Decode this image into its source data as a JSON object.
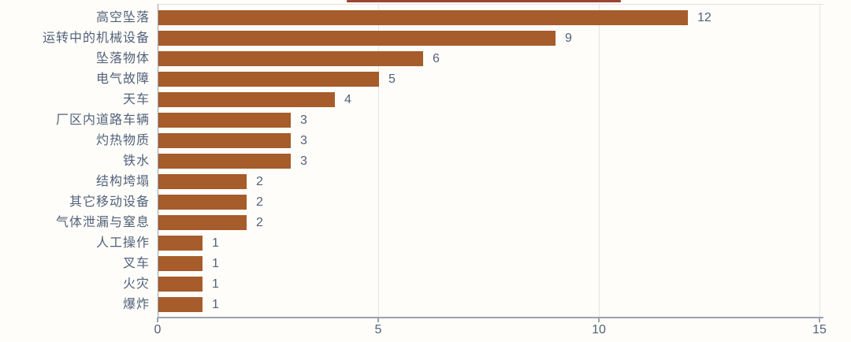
{
  "chart_data": {
    "type": "bar",
    "orientation": "horizontal",
    "title": "",
    "xlabel": "",
    "ylabel": "",
    "categories": [
      "高空坠落",
      "运转中的机械设备",
      "坠落物体",
      "电气故障",
      "天车",
      "厂区内道路车辆",
      "灼热物质",
      "铁水",
      "结构垮塌",
      "其它移动设备",
      "气体泄漏与窒息",
      "人工操作",
      "叉车",
      "火灾",
      "爆炸"
    ],
    "values": [
      12,
      9,
      6,
      5,
      4,
      3,
      3,
      3,
      2,
      2,
      2,
      1,
      1,
      1,
      1
    ],
    "xlim": [
      0,
      15
    ],
    "x_ticks": [
      0,
      5,
      10,
      15
    ],
    "grid": true,
    "legend": "none",
    "colors": {
      "bar": "#a65c2b",
      "text": "#51627a",
      "axis": "#9aa3ad",
      "gridline": "#e4e4e4",
      "title_remnant": "#9c4534"
    }
  }
}
